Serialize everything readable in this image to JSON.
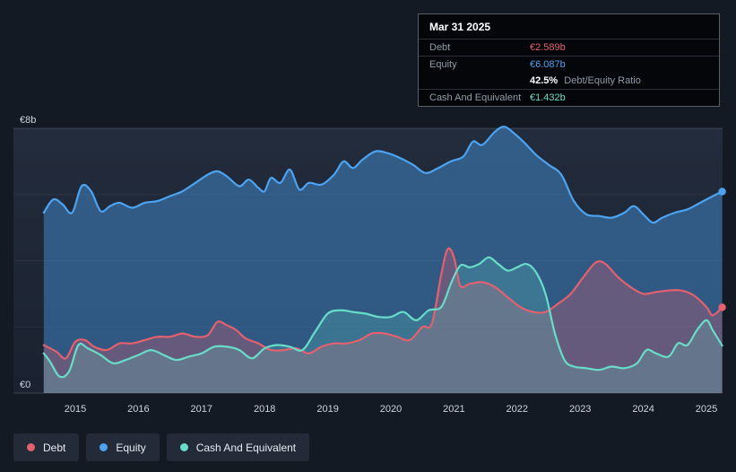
{
  "colors": {
    "debt": "#e4606f",
    "equity": "#4ba3f1",
    "cash": "#68dcc8",
    "page_bg": "#141a24",
    "plot_bg_top": "#232c3c",
    "plot_bg_bottom": "#1a2230",
    "axis_text": "#cdd4dc",
    "grid_bottom": "#3a4250"
  },
  "tooltip": {
    "date": "Mar 31 2025",
    "rows": [
      {
        "label": "Debt",
        "value": "€2.589b",
        "color": "debt"
      },
      {
        "label": "Equity",
        "value": "€6.087b",
        "color": "equity"
      },
      {
        "label": "Cash And Equivalent",
        "value": "€1.432b",
        "color": "cash"
      }
    ],
    "ratio": {
      "value": "42.5%",
      "label": "Debt/Equity Ratio"
    }
  },
  "legend": [
    {
      "label": "Debt",
      "color": "debt"
    },
    {
      "label": "Equity",
      "color": "equity"
    },
    {
      "label": "Cash And Equivalent",
      "color": "cash"
    }
  ],
  "chart_data": {
    "type": "area",
    "x_ticks": [
      "2015",
      "2016",
      "2017",
      "2018",
      "2019",
      "2020",
      "2021",
      "2022",
      "2023",
      "2024",
      "2025"
    ],
    "ylim": [
      0,
      8
    ],
    "x_range": [
      2014.5,
      2025.25
    ],
    "y_labels": [
      {
        "value": 8,
        "label": "€8b"
      },
      {
        "value": 0,
        "label": "€0"
      }
    ],
    "grid_values": [
      0,
      2,
      4,
      6,
      8
    ],
    "series": [
      {
        "name": "Equity",
        "color": "equity",
        "fill_opacity": 0.42,
        "end_marker": true,
        "latest_value": "€6.087b",
        "points": [
          [
            2014.5,
            5.45
          ],
          [
            2014.65,
            5.85
          ],
          [
            2014.8,
            5.7
          ],
          [
            2014.95,
            5.45
          ],
          [
            2015.1,
            6.25
          ],
          [
            2015.25,
            6.1
          ],
          [
            2015.4,
            5.5
          ],
          [
            2015.55,
            5.65
          ],
          [
            2015.7,
            5.75
          ],
          [
            2015.9,
            5.6
          ],
          [
            2016.1,
            5.75
          ],
          [
            2016.3,
            5.8
          ],
          [
            2016.5,
            5.95
          ],
          [
            2016.7,
            6.1
          ],
          [
            2016.9,
            6.35
          ],
          [
            2017.1,
            6.6
          ],
          [
            2017.25,
            6.7
          ],
          [
            2017.4,
            6.55
          ],
          [
            2017.6,
            6.25
          ],
          [
            2017.75,
            6.45
          ],
          [
            2017.9,
            6.2
          ],
          [
            2018.0,
            6.1
          ],
          [
            2018.1,
            6.5
          ],
          [
            2018.25,
            6.35
          ],
          [
            2018.4,
            6.75
          ],
          [
            2018.55,
            6.15
          ],
          [
            2018.7,
            6.35
          ],
          [
            2018.9,
            6.3
          ],
          [
            2019.1,
            6.6
          ],
          [
            2019.25,
            7.0
          ],
          [
            2019.4,
            6.8
          ],
          [
            2019.55,
            7.05
          ],
          [
            2019.75,
            7.3
          ],
          [
            2019.95,
            7.25
          ],
          [
            2020.15,
            7.1
          ],
          [
            2020.35,
            6.9
          ],
          [
            2020.55,
            6.65
          ],
          [
            2020.75,
            6.8
          ],
          [
            2020.95,
            7.0
          ],
          [
            2021.15,
            7.15
          ],
          [
            2021.3,
            7.6
          ],
          [
            2021.45,
            7.5
          ],
          [
            2021.65,
            7.9
          ],
          [
            2021.8,
            8.05
          ],
          [
            2021.95,
            7.85
          ],
          [
            2022.1,
            7.6
          ],
          [
            2022.3,
            7.2
          ],
          [
            2022.5,
            6.9
          ],
          [
            2022.7,
            6.6
          ],
          [
            2022.9,
            5.8
          ],
          [
            2023.1,
            5.4
          ],
          [
            2023.3,
            5.35
          ],
          [
            2023.5,
            5.3
          ],
          [
            2023.7,
            5.45
          ],
          [
            2023.85,
            5.65
          ],
          [
            2024.0,
            5.4
          ],
          [
            2024.15,
            5.15
          ],
          [
            2024.3,
            5.3
          ],
          [
            2024.5,
            5.45
          ],
          [
            2024.7,
            5.55
          ],
          [
            2024.9,
            5.75
          ],
          [
            2025.1,
            5.95
          ],
          [
            2025.25,
            6.087
          ]
        ]
      },
      {
        "name": "Debt",
        "color": "debt",
        "fill_opacity": 0.3,
        "end_marker": true,
        "latest_value": "€2.589b",
        "points": [
          [
            2014.5,
            1.45
          ],
          [
            2014.7,
            1.25
          ],
          [
            2014.85,
            1.05
          ],
          [
            2015.0,
            1.55
          ],
          [
            2015.15,
            1.6
          ],
          [
            2015.3,
            1.4
          ],
          [
            2015.5,
            1.3
          ],
          [
            2015.7,
            1.5
          ],
          [
            2015.9,
            1.5
          ],
          [
            2016.1,
            1.6
          ],
          [
            2016.3,
            1.7
          ],
          [
            2016.5,
            1.7
          ],
          [
            2016.7,
            1.8
          ],
          [
            2016.9,
            1.7
          ],
          [
            2017.1,
            1.75
          ],
          [
            2017.25,
            2.15
          ],
          [
            2017.4,
            2.05
          ],
          [
            2017.55,
            1.9
          ],
          [
            2017.7,
            1.65
          ],
          [
            2017.9,
            1.5
          ],
          [
            2018.1,
            1.3
          ],
          [
            2018.3,
            1.3
          ],
          [
            2018.5,
            1.35
          ],
          [
            2018.7,
            1.2
          ],
          [
            2018.9,
            1.4
          ],
          [
            2019.1,
            1.5
          ],
          [
            2019.3,
            1.5
          ],
          [
            2019.5,
            1.6
          ],
          [
            2019.7,
            1.8
          ],
          [
            2019.9,
            1.8
          ],
          [
            2020.1,
            1.7
          ],
          [
            2020.3,
            1.6
          ],
          [
            2020.5,
            2.0
          ],
          [
            2020.65,
            2.1
          ],
          [
            2020.8,
            3.6
          ],
          [
            2020.9,
            4.35
          ],
          [
            2021.0,
            4.1
          ],
          [
            2021.1,
            3.25
          ],
          [
            2021.25,
            3.3
          ],
          [
            2021.45,
            3.35
          ],
          [
            2021.65,
            3.2
          ],
          [
            2021.85,
            2.9
          ],
          [
            2022.05,
            2.6
          ],
          [
            2022.25,
            2.45
          ],
          [
            2022.45,
            2.45
          ],
          [
            2022.65,
            2.7
          ],
          [
            2022.85,
            3.0
          ],
          [
            2023.05,
            3.5
          ],
          [
            2023.25,
            3.95
          ],
          [
            2023.4,
            3.9
          ],
          [
            2023.6,
            3.5
          ],
          [
            2023.8,
            3.2
          ],
          [
            2024.0,
            3.0
          ],
          [
            2024.2,
            3.05
          ],
          [
            2024.4,
            3.1
          ],
          [
            2024.6,
            3.1
          ],
          [
            2024.8,
            2.95
          ],
          [
            2025.0,
            2.6
          ],
          [
            2025.1,
            2.35
          ],
          [
            2025.25,
            2.589
          ]
        ]
      },
      {
        "name": "Cash And Equivalent",
        "color": "cash",
        "fill_opacity": 0.22,
        "end_marker": false,
        "latest_value": "€1.432b",
        "points": [
          [
            2014.5,
            1.2
          ],
          [
            2014.6,
            0.95
          ],
          [
            2014.75,
            0.5
          ],
          [
            2014.9,
            0.65
          ],
          [
            2015.05,
            1.45
          ],
          [
            2015.2,
            1.35
          ],
          [
            2015.4,
            1.15
          ],
          [
            2015.6,
            0.9
          ],
          [
            2015.8,
            1.0
          ],
          [
            2016.0,
            1.15
          ],
          [
            2016.2,
            1.3
          ],
          [
            2016.4,
            1.15
          ],
          [
            2016.6,
            1.0
          ],
          [
            2016.8,
            1.1
          ],
          [
            2017.0,
            1.2
          ],
          [
            2017.2,
            1.4
          ],
          [
            2017.4,
            1.4
          ],
          [
            2017.6,
            1.3
          ],
          [
            2017.8,
            1.05
          ],
          [
            2018.0,
            1.35
          ],
          [
            2018.2,
            1.45
          ],
          [
            2018.4,
            1.4
          ],
          [
            2018.6,
            1.3
          ],
          [
            2018.8,
            1.85
          ],
          [
            2019.0,
            2.4
          ],
          [
            2019.2,
            2.5
          ],
          [
            2019.4,
            2.45
          ],
          [
            2019.6,
            2.4
          ],
          [
            2019.8,
            2.3
          ],
          [
            2020.0,
            2.3
          ],
          [
            2020.2,
            2.45
          ],
          [
            2020.4,
            2.2
          ],
          [
            2020.6,
            2.5
          ],
          [
            2020.8,
            2.6
          ],
          [
            2020.95,
            3.3
          ],
          [
            2021.1,
            3.85
          ],
          [
            2021.25,
            3.8
          ],
          [
            2021.4,
            3.9
          ],
          [
            2021.55,
            4.1
          ],
          [
            2021.7,
            3.9
          ],
          [
            2021.85,
            3.7
          ],
          [
            2022.0,
            3.8
          ],
          [
            2022.15,
            3.9
          ],
          [
            2022.3,
            3.65
          ],
          [
            2022.45,
            3.0
          ],
          [
            2022.6,
            1.8
          ],
          [
            2022.75,
            1.0
          ],
          [
            2022.9,
            0.8
          ],
          [
            2023.1,
            0.75
          ],
          [
            2023.3,
            0.7
          ],
          [
            2023.5,
            0.8
          ],
          [
            2023.7,
            0.75
          ],
          [
            2023.9,
            0.9
          ],
          [
            2024.05,
            1.3
          ],
          [
            2024.2,
            1.2
          ],
          [
            2024.4,
            1.1
          ],
          [
            2024.55,
            1.5
          ],
          [
            2024.7,
            1.45
          ],
          [
            2024.85,
            1.9
          ],
          [
            2025.0,
            2.2
          ],
          [
            2025.1,
            1.9
          ],
          [
            2025.25,
            1.432
          ]
        ]
      }
    ]
  }
}
